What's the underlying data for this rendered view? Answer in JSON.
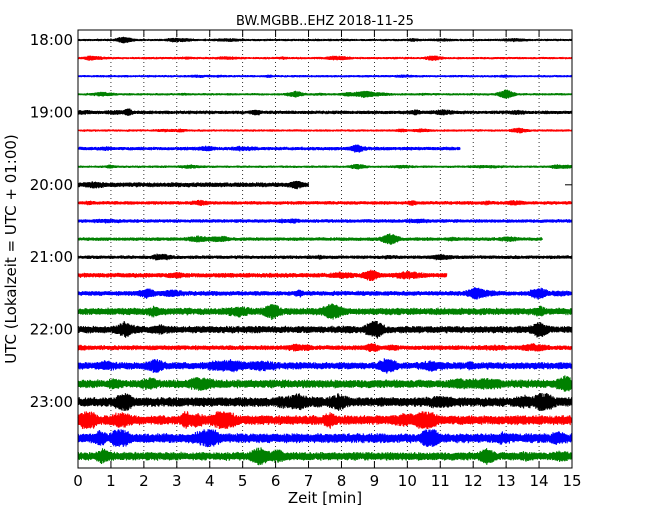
{
  "chart_data": {
    "type": "line",
    "title": "BW.MGBB..EHZ 2018-11-25",
    "xlabel": "Zeit  [min]",
    "ylabel": "UTC (Lokalzeit = UTC + 01:00)",
    "xlim": [
      0,
      15
    ],
    "x_ticks": [
      "0",
      "1",
      "2",
      "3",
      "4",
      "5",
      "6",
      "7",
      "8",
      "9",
      "10",
      "11",
      "12",
      "13",
      "14",
      "15"
    ],
    "y_ticks": [
      "18:00",
      "19:00",
      "20:00",
      "21:00",
      "22:00",
      "23:00"
    ],
    "grid": "vertical dotted",
    "trace_length_min": 15,
    "color_cycle": [
      "#000000",
      "#ff0000",
      "#0000ff",
      "#008000"
    ],
    "series": [
      {
        "start": "18:00",
        "duration_min": 15,
        "amplitude_level": 1,
        "events": [
          [
            1.4,
            2
          ]
        ]
      },
      {
        "start": "18:15",
        "duration_min": 15,
        "amplitude_level": 1,
        "events": [
          [
            10.8,
            1.5
          ]
        ]
      },
      {
        "start": "18:30",
        "duration_min": 15,
        "amplitude_level": 1,
        "events": []
      },
      {
        "start": "18:45",
        "duration_min": 15,
        "amplitude_level": 1,
        "events": [
          [
            6.6,
            2
          ],
          [
            8.7,
            2
          ],
          [
            13.0,
            3
          ]
        ]
      },
      {
        "start": "19:00",
        "duration_min": 15,
        "amplitude_level": 1.5,
        "events": []
      },
      {
        "start": "19:15",
        "duration_min": 15,
        "amplitude_level": 1,
        "events": [
          [
            13.4,
            1.5
          ]
        ]
      },
      {
        "start": "19:30",
        "duration_min": 11.6,
        "amplitude_level": 1.5,
        "events": []
      },
      {
        "start": "19:45",
        "duration_min": 15,
        "amplitude_level": 1,
        "events": [
          [
            8.5,
            1.5
          ]
        ]
      },
      {
        "start": "20:00",
        "duration_min": 7.0,
        "amplitude_level": 2,
        "events": []
      },
      {
        "start": "20:15",
        "duration_min": 15,
        "amplitude_level": 1.5,
        "events": []
      },
      {
        "start": "20:30",
        "duration_min": 15,
        "amplitude_level": 1.5,
        "events": []
      },
      {
        "start": "20:45",
        "duration_min": 14.1,
        "amplitude_level": 1.5,
        "events": [
          [
            9.5,
            2.5
          ]
        ]
      },
      {
        "start": "21:00",
        "duration_min": 15,
        "amplitude_level": 1.5,
        "events": []
      },
      {
        "start": "21:15",
        "duration_min": 11.2,
        "amplitude_level": 2,
        "events": [
          [
            8.9,
            3
          ]
        ]
      },
      {
        "start": "21:30",
        "duration_min": 15,
        "amplitude_level": 2,
        "events": [
          [
            14.0,
            3.5
          ]
        ]
      },
      {
        "start": "21:45",
        "duration_min": 15,
        "amplitude_level": 3,
        "events": [
          [
            5.9,
            4
          ]
        ]
      },
      {
        "start": "22:00",
        "duration_min": 15,
        "amplitude_level": 3,
        "events": [
          [
            9.0,
            4
          ],
          [
            14.0,
            4
          ]
        ]
      },
      {
        "start": "22:15",
        "duration_min": 15,
        "amplitude_level": 2,
        "events": []
      },
      {
        "start": "22:30",
        "duration_min": 15,
        "amplitude_level": 3,
        "events": [
          [
            9.4,
            4
          ]
        ]
      },
      {
        "start": "22:45",
        "duration_min": 15,
        "amplitude_level": 3.5,
        "events": [
          [
            14.8,
            4
          ]
        ]
      },
      {
        "start": "23:00",
        "duration_min": 15,
        "amplitude_level": 4,
        "events": [
          [
            1.4,
            5
          ],
          [
            14.2,
            5
          ]
        ]
      },
      {
        "start": "23:15",
        "duration_min": 15,
        "amplitude_level": 4,
        "events": [
          [
            0.3,
            5.5
          ],
          [
            4.5,
            5
          ],
          [
            10.6,
            6
          ]
        ]
      },
      {
        "start": "23:30",
        "duration_min": 15,
        "amplitude_level": 4,
        "events": [
          [
            1.3,
            5
          ],
          [
            10.7,
            6
          ]
        ]
      },
      {
        "start": "23:45",
        "duration_min": 15,
        "amplitude_level": 3.5,
        "events": [
          [
            5.5,
            4.5
          ]
        ]
      }
    ]
  }
}
